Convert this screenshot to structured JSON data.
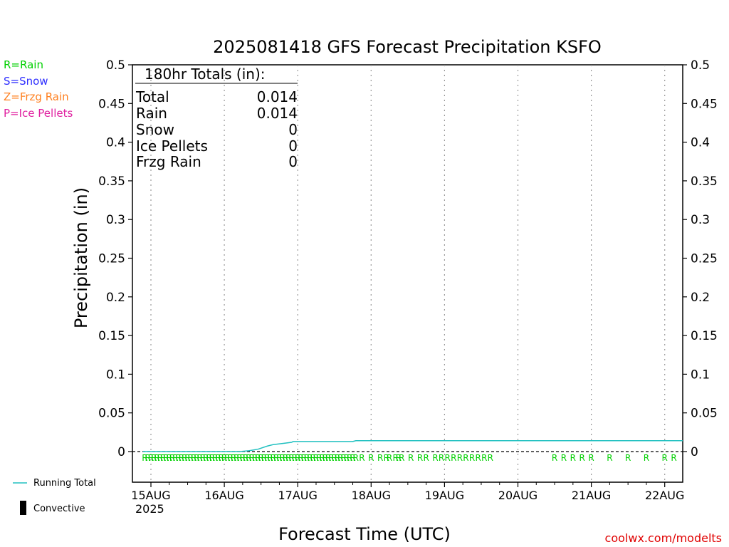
{
  "chart_data": {
    "type": "line",
    "title": "2025081418 GFS Forecast Precipitation KSFO",
    "xlabel": "Forecast Time (UTC)",
    "ylabel": "Precipitation (in)",
    "ylim": [
      0,
      0.5
    ],
    "y_ticks": [
      "0",
      "0.05",
      "0.1",
      "0.15",
      "0.2",
      "0.25",
      "0.3",
      "0.35",
      "0.4",
      "0.45",
      "0.5"
    ],
    "x_tick_labels": [
      "15AUG",
      "16AUG",
      "17AUG",
      "18AUG",
      "19AUG",
      "20AUG",
      "21AUG",
      "22AUG"
    ],
    "x_year_label": "2025",
    "grid": "vertical dotted",
    "series": [
      {
        "name": "Running Total",
        "color": "#20c0c0",
        "x_hours_from_15AUG00Z": [
          -2.6,
          12,
          24,
          29,
          32,
          35,
          38,
          40,
          44,
          46,
          46.5,
          60,
          66,
          67,
          180
        ],
        "values": [
          0,
          0,
          0,
          0,
          0.001,
          0.003,
          0.007,
          0.009,
          0.011,
          0.012,
          0.013,
          0.013,
          0.013,
          0.014,
          0.014
        ]
      }
    ],
    "ptype_markers": [
      {
        "symbol": "R",
        "hours": [
          -2,
          -1,
          0,
          1,
          2,
          3,
          4,
          5,
          6,
          7,
          8,
          9,
          10,
          11,
          12,
          13,
          14,
          15,
          16,
          17,
          18,
          19,
          20,
          21,
          22,
          23,
          24,
          25,
          26,
          27,
          28,
          29,
          30,
          31,
          32,
          33,
          34,
          35,
          36,
          37,
          38,
          39,
          40,
          41,
          42,
          43,
          44,
          45,
          46,
          47,
          48,
          49,
          50,
          51,
          52,
          53,
          54,
          55,
          56,
          57,
          58,
          59,
          60,
          61,
          62,
          63,
          64,
          65,
          66,
          67,
          69,
          72,
          75,
          77,
          78,
          80,
          81,
          82,
          85,
          88,
          90,
          93,
          95,
          97,
          99,
          101,
          103,
          105,
          107,
          109,
          111,
          132,
          135,
          138,
          141,
          144,
          150,
          156,
          162,
          168,
          171,
          174
        ]
      }
    ],
    "totals_box": {
      "header": "180hr Totals (in):",
      "rows": [
        {
          "label": "Total",
          "value": "0.014"
        },
        {
          "label": "Rain",
          "value": "0.014"
        },
        {
          "label": "Snow",
          "value": "0"
        },
        {
          "label": "Ice Pellets",
          "value": "0"
        },
        {
          "label": "Frzg Rain",
          "value": "0"
        }
      ]
    }
  },
  "ptype_legend": [
    {
      "text": "R=Rain",
      "color": "#00d000"
    },
    {
      "text": "S=Snow",
      "color": "#3030ff"
    },
    {
      "text": "Z=Frzg Rain",
      "color": "#ff8020"
    },
    {
      "text": "P=Ice Pellets",
      "color": "#e020a0"
    }
  ],
  "bottom_legend": {
    "running_total": "Running Total",
    "convective": "Convective"
  },
  "credit": "coolwx.com/modelts",
  "colors": {
    "rain": "#00d000",
    "running_total": "#20c0c0",
    "credit": "#e00000"
  }
}
